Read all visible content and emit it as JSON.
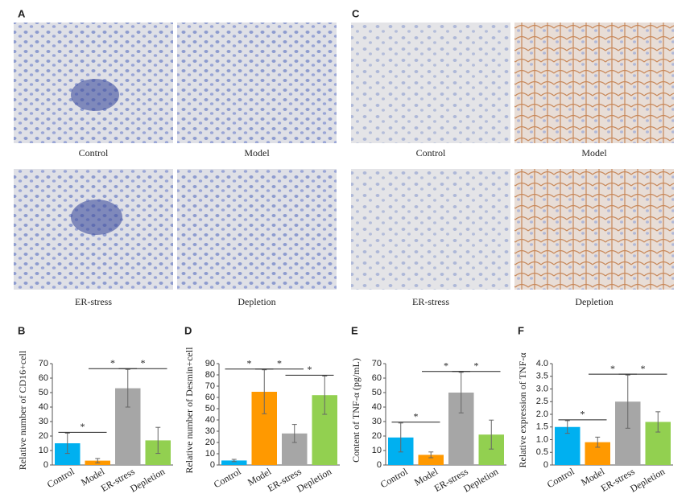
{
  "figure": {
    "panels": [
      {
        "label": "A",
        "images": [
          {
            "caption": "Control"
          },
          {
            "caption": "Model"
          },
          {
            "caption": "ER-stress"
          },
          {
            "caption": "Depletion"
          }
        ]
      },
      {
        "label": "C",
        "images": [
          {
            "caption": "Control"
          },
          {
            "caption": "Model"
          },
          {
            "caption": "ER-stress"
          },
          {
            "caption": "Depletion"
          }
        ]
      }
    ]
  },
  "chart_data": [
    {
      "type": "bar",
      "panel_label": "B",
      "ylabel": "Relative number of CD16+cell",
      "categories": [
        "Control",
        "Model",
        "ER-stress",
        "Depletion"
      ],
      "values": [
        15,
        3,
        53,
        17
      ],
      "errors": [
        7,
        1.5,
        13,
        9
      ],
      "colors": [
        "#00b0f0",
        "#ff9900",
        "#a6a6a6",
        "#92d050"
      ],
      "ylim": [
        0,
        70
      ],
      "yticks": [
        0,
        10,
        20,
        30,
        40,
        50,
        60,
        70
      ],
      "significance": [
        {
          "label": "*",
          "bars": [
            0,
            1
          ]
        },
        {
          "label": "*",
          "bars": [
            1,
            2
          ]
        },
        {
          "label": "*",
          "bars": [
            2,
            3
          ]
        }
      ]
    },
    {
      "type": "bar",
      "panel_label": "D",
      "ylabel": "Relative number of Desmin+cell",
      "categories": [
        "Control",
        "Model",
        "ER-stress",
        "Depletion"
      ],
      "values": [
        4,
        65,
        28,
        62
      ],
      "errors": [
        1,
        19.5,
        8,
        17
      ],
      "colors": [
        "#00b0f0",
        "#ff9900",
        "#a6a6a6",
        "#92d050"
      ],
      "ylim": [
        0,
        90
      ],
      "yticks": [
        0,
        10,
        20,
        30,
        40,
        50,
        60,
        70,
        80,
        90
      ],
      "significance": [
        {
          "label": "*",
          "bars": [
            0,
            1
          ]
        },
        {
          "label": "*",
          "bars": [
            1,
            2
          ]
        },
        {
          "label": "*",
          "bars": [
            2,
            3
          ]
        }
      ]
    },
    {
      "type": "bar",
      "panel_label": "E",
      "ylabel": "Content of TNF-α (pg/mL)",
      "categories": [
        "Control",
        "Model",
        "ER-stress",
        "Depletion"
      ],
      "values": [
        19,
        7,
        50,
        21
      ],
      "errors": [
        10,
        2,
        14,
        10
      ],
      "colors": [
        "#00b0f0",
        "#ff9900",
        "#a6a6a6",
        "#92d050"
      ],
      "ylim": [
        0,
        70
      ],
      "yticks": [
        0,
        10,
        20,
        30,
        40,
        50,
        60,
        70
      ],
      "significance": [
        {
          "label": "*",
          "bars": [
            0,
            1
          ]
        },
        {
          "label": "*",
          "bars": [
            1,
            2
          ]
        },
        {
          "label": "*",
          "bars": [
            2,
            3
          ]
        }
      ]
    },
    {
      "type": "bar",
      "panel_label": "F",
      "ylabel": "Relative expression of TNF-α",
      "categories": [
        "Control",
        "Model",
        "ER-stress",
        "Depletion"
      ],
      "values": [
        1.5,
        0.9,
        2.5,
        1.7
      ],
      "errors": [
        0.25,
        0.2,
        1.05,
        0.4
      ],
      "colors": [
        "#00b0f0",
        "#ff9900",
        "#a6a6a6",
        "#92d050"
      ],
      "ylim": [
        0,
        4
      ],
      "yticks": [
        0,
        0.5,
        {
          "value": 1,
          "label": "1.0"
        },
        1.5,
        {
          "value": 2,
          "label": "2.0"
        },
        2.5,
        {
          "value": 3,
          "label": "3.0"
        },
        3.5,
        {
          "value": 4,
          "label": "4.0"
        }
      ],
      "significance": [
        {
          "label": "*",
          "bars": [
            0,
            1
          ]
        },
        {
          "label": "*",
          "bars": [
            1,
            2
          ]
        },
        {
          "label": "*",
          "bars": [
            2,
            3
          ]
        }
      ]
    }
  ]
}
